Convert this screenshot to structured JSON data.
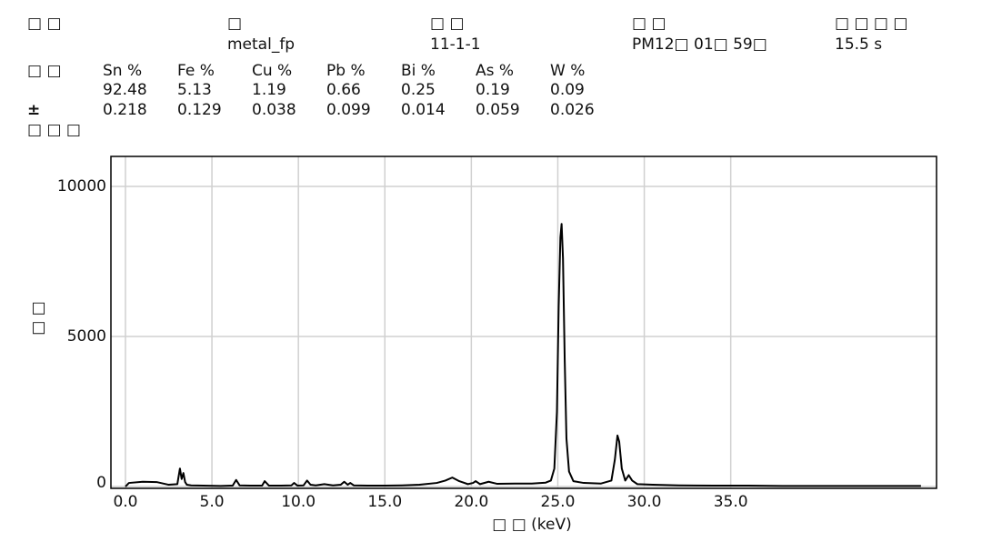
{
  "header": {
    "columns": [
      {
        "label": "□ □"
      },
      {
        "label": "□",
        "value": "metal_fp"
      },
      {
        "label": "□ □",
        "value": "11-1-1"
      },
      {
        "label": "□ □",
        "value": "PM12□ 01□ 59□"
      },
      {
        "label": "□ □ □ □",
        "value": "15.5 s"
      }
    ]
  },
  "results": {
    "label": "□ □",
    "error_label": "±",
    "note": "□ □ □",
    "elements": [
      {
        "name": "Sn %",
        "value": 92.48,
        "error": 0.218
      },
      {
        "name": "Fe %",
        "value": 5.13,
        "error": 0.129
      },
      {
        "name": "Cu %",
        "value": 1.19,
        "error": 0.038
      },
      {
        "name": "Pb %",
        "value": 0.66,
        "error": 0.099
      },
      {
        "name": "Bi %",
        "value": 0.25,
        "error": 0.014
      },
      {
        "name": "As %",
        "value": 0.19,
        "error": 0.059
      },
      {
        "name": "W %",
        "value": 0.09,
        "error": 0.026
      }
    ]
  },
  "chart_data": {
    "type": "line",
    "x_label": "□ □ (keV)",
    "y_label": "□ □",
    "color": "#000000",
    "grid": true,
    "xlim": [
      -0.84,
      46.9
    ],
    "ylim": [
      -60,
      11000
    ],
    "xticks": [
      {
        "value": 0,
        "label": "0.0"
      },
      {
        "value": 5,
        "label": "5.0"
      },
      {
        "value": 10,
        "label": "10.0"
      },
      {
        "value": 15,
        "label": "15.0"
      },
      {
        "value": 20,
        "label": "20.0"
      },
      {
        "value": 25,
        "label": "25.0"
      },
      {
        "value": 30,
        "label": "30.0"
      },
      {
        "value": 35,
        "label": "35.0"
      }
    ],
    "yticks": [
      0,
      5000,
      10000
    ],
    "x": [
      0,
      0.2,
      1,
      1.8,
      2.5,
      3.0,
      3.15,
      3.25,
      3.35,
      3.45,
      3.55,
      3.8,
      4.5,
      5.5,
      6.2,
      6.4,
      6.6,
      7.2,
      7.9,
      8.05,
      8.3,
      9.0,
      9.6,
      9.75,
      9.95,
      10.3,
      10.5,
      10.7,
      11.0,
      11.5,
      12.0,
      12.45,
      12.65,
      12.85,
      13.0,
      13.2,
      14,
      15,
      16,
      17,
      18,
      18.5,
      18.9,
      19.3,
      19.8,
      20.1,
      20.25,
      20.5,
      21.0,
      21.5,
      22.5,
      23.5,
      24.3,
      24.6,
      24.8,
      24.95,
      25.05,
      25.15,
      25.22,
      25.3,
      25.4,
      25.5,
      25.65,
      25.9,
      26.5,
      27.5,
      28.1,
      28.3,
      28.45,
      28.55,
      28.7,
      28.9,
      29.1,
      29.3,
      29.6,
      30.5,
      32,
      34,
      36,
      38,
      40,
      42,
      44,
      46
    ],
    "values": [
      0,
      120,
      160,
      150,
      60,
      80,
      600,
      250,
      450,
      150,
      60,
      40,
      30,
      20,
      30,
      220,
      40,
      30,
      30,
      180,
      30,
      30,
      40,
      120,
      30,
      40,
      200,
      60,
      40,
      80,
      40,
      60,
      160,
      60,
      120,
      40,
      30,
      30,
      40,
      60,
      120,
      200,
      300,
      180,
      80,
      120,
      180,
      80,
      160,
      90,
      100,
      100,
      130,
      200,
      600,
      2500,
      6000,
      8300,
      8750,
      7600,
      4200,
      1600,
      500,
      180,
      120,
      100,
      200,
      900,
      1700,
      1500,
      600,
      200,
      380,
      200,
      80,
      60,
      40,
      30,
      30,
      20,
      20,
      20,
      20,
      20
    ]
  }
}
